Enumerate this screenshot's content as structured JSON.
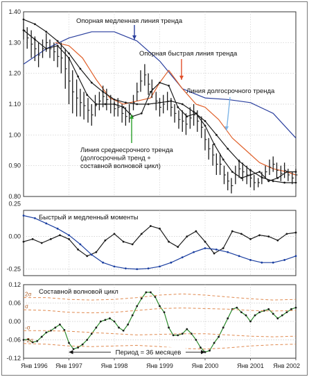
{
  "chart_data": [
    {
      "type": "line",
      "panel": "price",
      "ylim": [
        0.8,
        1.4
      ],
      "yticks": [
        0.8,
        0.9,
        1.0,
        1.1,
        1.2,
        1.3,
        1.4
      ],
      "ytick_labels": [
        "0.80",
        "0.90",
        "1.00",
        "1.10",
        "1.20",
        "1.30",
        "1.40"
      ],
      "grid": true,
      "annotations": [
        {
          "id": "slow",
          "text": "Опорная медленная линия тренда",
          "color": "#2a3f9e"
        },
        {
          "id": "fast",
          "text": "Опорная быстрая линия тренда",
          "color": "#e0502a"
        },
        {
          "id": "long",
          "text": "Линия долгосрочного тренда",
          "color": "#7fb6e8"
        },
        {
          "id": "mid",
          "lines": [
            "Линия среднесрочного тренда",
            "(долгосрочный тренд +",
            "составной волновой цикл)"
          ],
          "color": "#2aa02a"
        }
      ],
      "series": [
        {
          "role": "slow-reference-trend",
          "color": "#2a3f9e",
          "x": [
            1996.0,
            1996.5,
            1997.0,
            1997.5,
            1998.0,
            1998.5,
            1999.0,
            1999.5,
            2000.0,
            2000.5,
            2001.0,
            2001.5,
            2002.0
          ],
          "y": [
            1.23,
            1.28,
            1.315,
            1.335,
            1.335,
            1.305,
            1.24,
            1.15,
            1.12,
            1.115,
            1.105,
            1.07,
            0.99
          ]
        },
        {
          "role": "fast-reference-trend",
          "color": "#e0602a",
          "x": [
            1996.7,
            1997.0,
            1997.3,
            1997.6,
            1997.9,
            1998.2,
            1998.5,
            1998.8,
            1999.0,
            1999.2,
            1999.5,
            1999.8,
            2000.0,
            2000.3,
            2000.6,
            2000.9,
            2001.2,
            2001.5,
            2001.8,
            2002.0
          ],
          "y": [
            1.3,
            1.29,
            1.25,
            1.18,
            1.12,
            1.1,
            1.11,
            1.12,
            1.17,
            1.21,
            1.15,
            1.1,
            1.09,
            1.05,
            0.99,
            0.95,
            0.91,
            0.89,
            0.88,
            0.87
          ]
        },
        {
          "role": "long-term-trend",
          "color": "#1a1a1a",
          "dotted": true,
          "x": [
            1996.0,
            1996.25,
            1996.5,
            1996.75,
            1997.0,
            1997.25,
            1997.5,
            1997.75,
            1998.0,
            1998.25,
            1998.5,
            1998.75,
            1999.0,
            1999.25,
            1999.5,
            1999.75,
            2000.0,
            2000.25,
            2000.5,
            2000.75,
            2001.0,
            2001.25,
            2001.5,
            2001.75,
            2002.0
          ],
          "y": [
            1.375,
            1.36,
            1.335,
            1.305,
            1.265,
            1.215,
            1.17,
            1.14,
            1.115,
            1.105,
            1.1,
            1.1,
            1.105,
            1.11,
            1.1,
            1.075,
            1.045,
            1.0,
            0.955,
            0.915,
            0.885,
            0.862,
            0.85,
            0.845,
            0.845
          ]
        },
        {
          "role": "medium-term-trend",
          "color": "#1a1a1a",
          "dotted": true,
          "x": [
            1996.0,
            1996.25,
            1996.5,
            1996.75,
            1997.0,
            1997.2,
            1997.4,
            1997.6,
            1997.8,
            1998.0,
            1998.2,
            1998.4,
            1998.6,
            1998.8,
            1999.0,
            1999.2,
            1999.4,
            1999.6,
            1999.8,
            2000.0,
            2000.2,
            2000.4,
            2000.6,
            2000.8,
            2001.0,
            2001.2,
            2001.4,
            2001.6,
            2001.8,
            2002.0
          ],
          "y": [
            1.34,
            1.31,
            1.28,
            1.29,
            1.25,
            1.19,
            1.13,
            1.1,
            1.1,
            1.1,
            1.09,
            1.06,
            1.07,
            1.14,
            1.17,
            1.16,
            1.09,
            1.06,
            1.07,
            1.03,
            0.97,
            0.92,
            0.88,
            0.86,
            0.87,
            0.88,
            0.85,
            0.86,
            0.88,
            0.88
          ]
        },
        {
          "role": "price-bars",
          "color": "#1a1a1a",
          "type": "bar-range",
          "x": [
            1996.0,
            1996.08,
            1996.17,
            1996.25,
            1996.33,
            1996.42,
            1996.5,
            1996.58,
            1996.67,
            1996.75,
            1996.83,
            1996.92,
            1997.0,
            1997.08,
            1997.17,
            1997.25,
            1997.33,
            1997.42,
            1997.5,
            1997.58,
            1997.67,
            1997.75,
            1997.83,
            1997.92,
            1998.0,
            1998.08,
            1998.17,
            1998.25,
            1998.33,
            1998.42,
            1998.5,
            1998.58,
            1998.67,
            1998.75,
            1998.83,
            1998.92,
            1999.0,
            1999.08,
            1999.17,
            1999.25,
            1999.33,
            1999.42,
            1999.5,
            1999.58,
            1999.67,
            1999.75,
            1999.83,
            1999.92,
            2000.0,
            2000.08,
            2000.17,
            2000.25,
            2000.33,
            2000.42,
            2000.5,
            2000.58,
            2000.67,
            2000.75,
            2000.83,
            2000.92,
            2001.0,
            2001.08,
            2001.17,
            2001.25,
            2001.33,
            2001.42,
            2001.5,
            2001.58,
            2001.67,
            2001.75,
            2001.83,
            2001.92,
            2002.0
          ],
          "high": [
            1.37,
            1.35,
            1.34,
            1.32,
            1.3,
            1.31,
            1.33,
            1.31,
            1.3,
            1.29,
            1.3,
            1.28,
            1.25,
            1.21,
            1.18,
            1.15,
            1.14,
            1.12,
            1.1,
            1.13,
            1.14,
            1.16,
            1.15,
            1.13,
            1.11,
            1.12,
            1.1,
            1.09,
            1.1,
            1.13,
            1.17,
            1.21,
            1.23,
            1.2,
            1.18,
            1.14,
            1.12,
            1.13,
            1.14,
            1.12,
            1.1,
            1.08,
            1.08,
            1.07,
            1.09,
            1.1,
            1.08,
            1.06,
            1.02,
            0.99,
            0.97,
            0.94,
            0.94,
            0.9,
            0.88,
            0.86,
            0.9,
            0.92,
            0.91,
            0.9,
            0.89,
            0.87,
            0.86,
            0.88,
            0.9,
            0.92,
            0.93,
            0.91,
            0.9,
            0.91,
            0.89,
            0.88,
            0.89
          ],
          "low": [
            1.31,
            1.28,
            1.25,
            1.24,
            1.22,
            1.25,
            1.27,
            1.25,
            1.24,
            1.22,
            1.2,
            1.15,
            1.1,
            1.07,
            1.06,
            1.06,
            1.05,
            1.04,
            1.03,
            1.06,
            1.08,
            1.09,
            1.08,
            1.07,
            1.06,
            1.06,
            1.04,
            1.03,
            1.04,
            1.08,
            1.11,
            1.14,
            1.16,
            1.13,
            1.12,
            1.08,
            1.06,
            1.07,
            1.08,
            1.06,
            1.04,
            1.02,
            1.01,
            1.0,
            1.02,
            1.03,
            1.01,
            0.99,
            0.95,
            0.92,
            0.9,
            0.87,
            0.87,
            0.84,
            0.82,
            0.81,
            0.84,
            0.86,
            0.85,
            0.84,
            0.83,
            0.82,
            0.83,
            0.84,
            0.86,
            0.87,
            0.88,
            0.86,
            0.85,
            0.86,
            0.85,
            0.84,
            0.85
          ]
        }
      ]
    },
    {
      "type": "line",
      "panel": "momentum",
      "title": "Быстрый и медленный моменты",
      "ylim": [
        -0.3,
        0.2
      ],
      "yticks": [
        0.25,
        0.0,
        -0.25
      ],
      "ytick_labels": [
        "0.25",
        "0.00",
        "-0.25"
      ],
      "grid": true,
      "series": [
        {
          "role": "fast-momentum",
          "color": "#1a1a1a",
          "x": [
            1996.0,
            1996.2,
            1996.4,
            1996.6,
            1996.8,
            1997.0,
            1997.2,
            1997.4,
            1997.6,
            1997.8,
            1998.0,
            1998.2,
            1998.4,
            1998.6,
            1998.8,
            1999.0,
            1999.2,
            1999.4,
            1999.6,
            1999.8,
            2000.0,
            2000.2,
            2000.4,
            2000.6,
            2000.8,
            2001.0,
            2001.2,
            2001.4,
            2001.6,
            2001.8,
            2002.0
          ],
          "y": [
            -0.04,
            -0.02,
            -0.05,
            -0.02,
            0.01,
            -0.02,
            -0.1,
            -0.15,
            -0.12,
            -0.03,
            0.02,
            -0.04,
            -0.06,
            0.02,
            0.08,
            0.06,
            -0.04,
            -0.08,
            0.0,
            0.04,
            -0.04,
            -0.13,
            -0.09,
            0.04,
            0.02,
            -0.02,
            0.01,
            0.0,
            -0.03,
            0.02,
            0.03
          ]
        },
        {
          "role": "slow-momentum",
          "color": "#1a3ea0",
          "x": [
            1996.0,
            1996.25,
            1996.5,
            1996.75,
            1997.0,
            1997.25,
            1997.5,
            1997.75,
            1998.0,
            1998.25,
            1998.5,
            1998.75,
            1999.0,
            1999.25,
            1999.5,
            1999.75,
            2000.0,
            2000.25,
            2000.5,
            2000.75,
            2001.0,
            2001.25,
            2001.5,
            2001.75,
            2002.0
          ],
          "y": [
            0.16,
            0.14,
            0.1,
            0.06,
            0.01,
            -0.06,
            -0.14,
            -0.2,
            -0.23,
            -0.245,
            -0.25,
            -0.245,
            -0.23,
            -0.2,
            -0.16,
            -0.12,
            -0.09,
            -0.1,
            -0.12,
            -0.15,
            -0.18,
            -0.2,
            -0.2,
            -0.18,
            -0.15
          ]
        }
      ]
    },
    {
      "type": "line",
      "panel": "composite-cycle",
      "title": "Составной волновой цикл",
      "ylim": [
        -0.12,
        0.12
      ],
      "yticks": [
        0.12,
        0.06,
        0.0,
        -0.06,
        -0.12
      ],
      "ytick_labels": [
        "0.12",
        "0.06",
        "0.00",
        "-0.06",
        "-0.12"
      ],
      "grid": true,
      "band_labels": [
        "2σ",
        "σ",
        "-σ",
        "-2σ"
      ],
      "annotation": "Период = 36 месяцев",
      "annotation_range": [
        1997.0,
        2000.0
      ],
      "x_tick_labels": [
        "Янв 1996",
        "Янв 1997",
        "Янв 1998",
        "Янв 1999",
        "Янв 2000",
        "Янв 2001",
        "Янв 2002"
      ],
      "x_ticks": [
        1996,
        1997,
        1998,
        1999,
        2000,
        2001,
        2002
      ],
      "series": [
        {
          "role": "composite-wave-cycle",
          "color": "#2a8a2a",
          "x": [
            1996.0,
            1996.1,
            1996.2,
            1996.3,
            1996.4,
            1996.5,
            1996.6,
            1996.7,
            1996.8,
            1996.9,
            1997.0,
            1997.1,
            1997.2,
            1997.3,
            1997.4,
            1997.5,
            1997.6,
            1997.7,
            1997.8,
            1997.9,
            1998.0,
            1998.1,
            1998.2,
            1998.3,
            1998.4,
            1998.5,
            1998.6,
            1998.7,
            1998.8,
            1998.9,
            1999.0,
            1999.1,
            1999.2,
            1999.3,
            1999.4,
            1999.5,
            1999.6,
            1999.7,
            1999.8,
            1999.9,
            2000.0,
            2000.1,
            2000.2,
            2000.3,
            2000.4,
            2000.5,
            2000.6,
            2000.7,
            2000.8,
            2000.9,
            2001.0,
            2001.1,
            2001.2,
            2001.3,
            2001.4,
            2001.5,
            2001.6,
            2001.7,
            2001.8,
            2001.9,
            2002.0
          ],
          "y": [
            -0.06,
            -0.058,
            -0.068,
            -0.064,
            -0.05,
            -0.036,
            -0.03,
            -0.02,
            -0.01,
            -0.028,
            -0.07,
            -0.09,
            -0.085,
            -0.075,
            -0.06,
            -0.04,
            -0.02,
            0.0,
            0.005,
            0.01,
            0.0,
            -0.02,
            -0.03,
            -0.01,
            0.02,
            0.05,
            0.075,
            0.095,
            0.095,
            0.08,
            0.05,
            0.03,
            -0.02,
            -0.045,
            -0.045,
            -0.04,
            -0.025,
            -0.04,
            -0.06,
            -0.085,
            -0.1,
            -0.095,
            -0.07,
            -0.05,
            -0.02,
            0.01,
            0.04,
            0.045,
            0.03,
            0.02,
            0.0,
            0.02,
            0.03,
            0.035,
            0.04,
            0.025,
            0.01,
            0.02,
            0.03,
            0.04,
            0.045
          ]
        },
        {
          "role": "band-upper-2sigma",
          "color": "#e08a50",
          "dashed": true,
          "x": [
            1996.0,
            1996.5,
            1997.0,
            1997.5,
            1998.0,
            1998.5,
            1999.0,
            1999.5,
            2000.0,
            2000.5,
            2001.0,
            2001.5,
            2002.0
          ],
          "y": [
            0.078,
            0.078,
            0.072,
            0.07,
            0.072,
            0.078,
            0.086,
            0.09,
            0.086,
            0.08,
            0.074,
            0.07,
            0.072
          ]
        },
        {
          "role": "band-upper-sigma",
          "color": "#e08a50",
          "dashed": true,
          "x": [
            1996.0,
            1996.5,
            1997.0,
            1997.5,
            1998.0,
            1998.5,
            1999.0,
            1999.5,
            2000.0,
            2000.5,
            2001.0,
            2001.5,
            2002.0
          ],
          "y": [
            0.038,
            0.036,
            0.03,
            0.028,
            0.03,
            0.036,
            0.042,
            0.044,
            0.042,
            0.04,
            0.036,
            0.034,
            0.036
          ]
        },
        {
          "role": "band-lower-sigma",
          "color": "#e08a50",
          "dashed": true,
          "x": [
            1996.0,
            1996.5,
            1997.0,
            1997.5,
            1998.0,
            1998.5,
            1999.0,
            1999.5,
            2000.0,
            2000.5,
            2001.0,
            2001.5,
            2002.0
          ],
          "y": [
            -0.03,
            -0.03,
            -0.032,
            -0.036,
            -0.04,
            -0.044,
            -0.042,
            -0.04,
            -0.04,
            -0.044,
            -0.048,
            -0.05,
            -0.048
          ]
        },
        {
          "role": "band-lower-2sigma",
          "color": "#e08a50",
          "dashed": true,
          "x": [
            1996.0,
            1996.5,
            1997.0,
            1997.5,
            1998.0,
            1998.5,
            1999.0,
            1999.5,
            2000.0,
            2000.5,
            2001.0,
            2001.5,
            2002.0
          ],
          "y": [
            -0.072,
            -0.074,
            -0.08,
            -0.082,
            -0.08,
            -0.078,
            -0.082,
            -0.088,
            -0.09,
            -0.086,
            -0.08,
            -0.076,
            -0.074
          ]
        }
      ]
    }
  ]
}
